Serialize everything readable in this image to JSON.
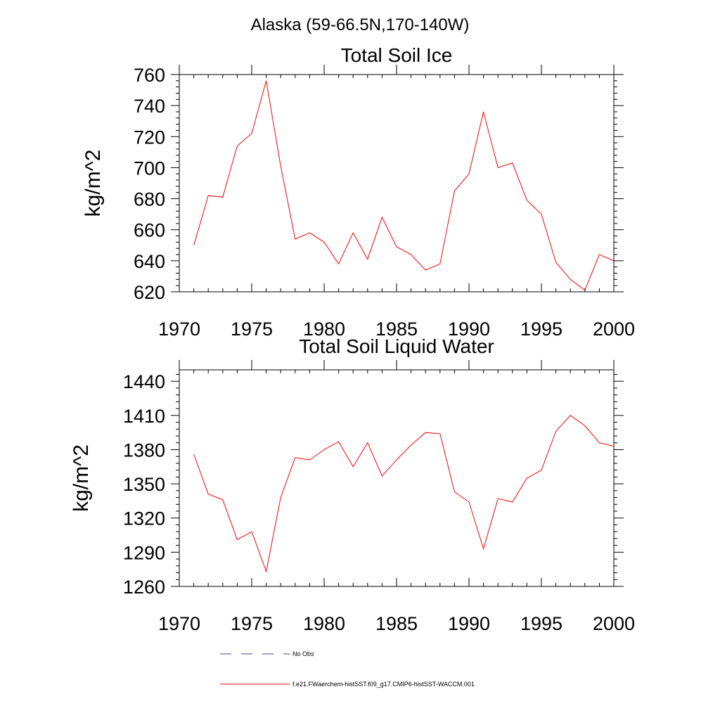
{
  "figure": {
    "title": "Alaska (59-66.5N,170-140W)"
  },
  "chart_data": [
    {
      "type": "line",
      "title": "Total Soil Ice",
      "xlabel": "",
      "ylabel": "kg/m^2",
      "xlim": [
        1970,
        2000
      ],
      "ylim": [
        620,
        760
      ],
      "x_ticks": [
        1970,
        1975,
        1980,
        1985,
        1990,
        1995,
        2000
      ],
      "y_ticks": [
        620,
        640,
        660,
        680,
        700,
        720,
        740,
        760
      ],
      "x_minor_step": 1,
      "y_minor_step": 4,
      "grid": false,
      "series": [
        {
          "name": "f.e21.FWaerchem-histSST.f09_g17.CMIP6-histSST-WACCM.001",
          "color": "#ff0000",
          "x": [
            1971,
            1972,
            1973,
            1974,
            1975,
            1976,
            1977,
            1978,
            1979,
            1980,
            1981,
            1982,
            1983,
            1984,
            1985,
            1986,
            1987,
            1988,
            1989,
            1990,
            1991,
            1992,
            1993,
            1994,
            1995,
            1996,
            1997,
            1998,
            1999,
            2000
          ],
          "values": [
            650,
            682,
            681,
            714,
            722,
            756,
            701,
            654,
            658,
            652,
            638,
            658,
            641,
            668,
            649,
            644,
            634,
            638,
            685,
            696,
            736,
            700,
            703,
            679,
            670,
            639,
            628,
            621,
            644,
            640
          ]
        }
      ]
    },
    {
      "type": "line",
      "title": "Total Soil Liquid Water",
      "xlabel": "",
      "ylabel": "kg/m^2",
      "xlim": [
        1970,
        2000
      ],
      "ylim": [
        1260,
        1450
      ],
      "x_ticks": [
        1970,
        1975,
        1980,
        1985,
        1990,
        1995,
        2000
      ],
      "y_ticks": [
        1260,
        1290,
        1320,
        1350,
        1380,
        1410,
        1440
      ],
      "x_minor_step": 1,
      "y_minor_step": 6,
      "grid": false,
      "series": [
        {
          "name": "f.e21.FWaerchem-histSST.f09_g17.CMIP6-histSST-WACCM.001",
          "color": "#ff0000",
          "x": [
            1971,
            1972,
            1973,
            1974,
            1975,
            1976,
            1977,
            1978,
            1979,
            1980,
            1981,
            1982,
            1983,
            1984,
            1985,
            1986,
            1987,
            1988,
            1989,
            1990,
            1991,
            1992,
            1993,
            1994,
            1995,
            1996,
            1997,
            1998,
            1999,
            2000
          ],
          "values": [
            1376,
            1341,
            1336,
            1301,
            1308,
            1273,
            1338,
            1373,
            1371,
            1380,
            1387,
            1365,
            1386,
            1357,
            1371,
            1384,
            1395,
            1394,
            1343,
            1334,
            1293,
            1337,
            1334,
            1355,
            1362,
            1396,
            1410,
            1401,
            1386,
            1383
          ]
        }
      ]
    }
  ],
  "legend": {
    "placement": "bottom-left",
    "items": [
      {
        "label": "No Obs",
        "color": "#4a4a8c",
        "style": "dashed"
      },
      {
        "label": "f.e21.FWaerchem-histSST.f09_g17.CMIP6-histSST-WACCM.001",
        "color": "#ff0000",
        "style": "solid"
      }
    ]
  }
}
